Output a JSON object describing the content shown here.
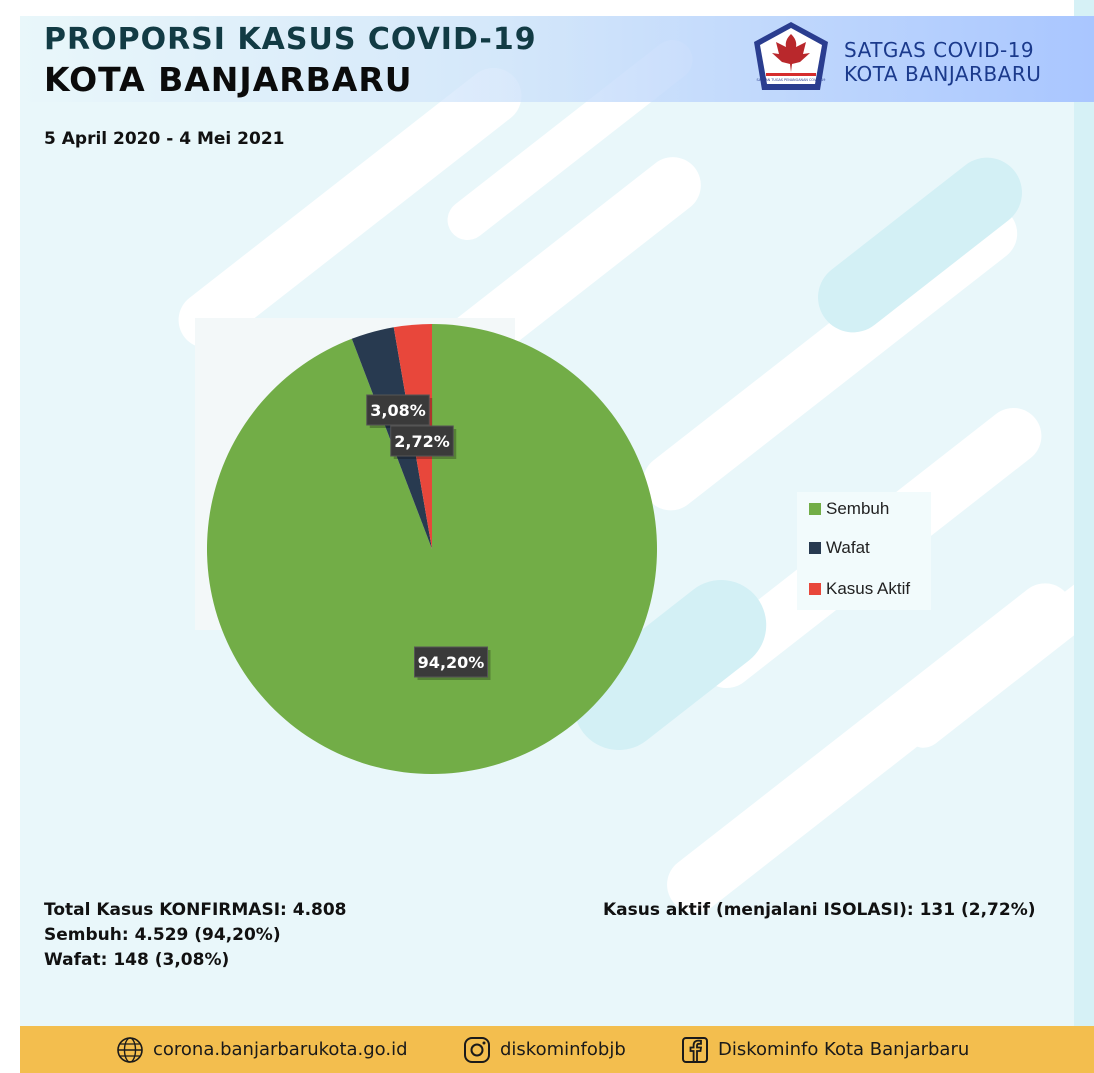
{
  "header": {
    "title_line1": "PROPORSI KASUS COVID-19",
    "title_line2": "KOTA BANJARBARU",
    "date_range": "5 April 2020 - 4 Mei 2021",
    "org_line1": "SATGAS COVID-19",
    "org_line2": "KOTA BANJARBARU",
    "logo_icon": "garuda-emblem-icon",
    "logo_text": "SATUAN TUGAS PENANGANAN COVID-19"
  },
  "colors": {
    "sembuh": "#72ad47",
    "wafat": "#283a50",
    "kasus_aktif": "#e8473b",
    "footer": "#f3be4e",
    "title_dark": "#123b44",
    "org_blue": "#1b3a8c"
  },
  "chart_data": {
    "type": "pie",
    "categories": [
      "Sembuh",
      "Wafat",
      "Kasus Aktif"
    ],
    "values": [
      94.2,
      3.08,
      2.72
    ],
    "labels": [
      "94,20%",
      "3,08%",
      "2,72%"
    ],
    "colors": [
      "#72ad47",
      "#283a50",
      "#e8473b"
    ],
    "legend_position": "right"
  },
  "stats": {
    "total": "Total Kasus KONFIRMASI: 4.808",
    "sembuh": "Sembuh: 4.529 (94,20%)",
    "wafat": "Wafat: 148 (3,08%)",
    "aktif": "Kasus aktif (menjalani ISOLASI): 131 (2,72%)"
  },
  "footer": {
    "website": "corona.banjarbarukota.go.id",
    "website_icon": "globe-icon",
    "instagram": "diskominfobjb",
    "instagram_icon": "instagram-icon",
    "facebook": "Diskominfo Kota Banjarbaru",
    "facebook_icon": "facebook-icon"
  }
}
